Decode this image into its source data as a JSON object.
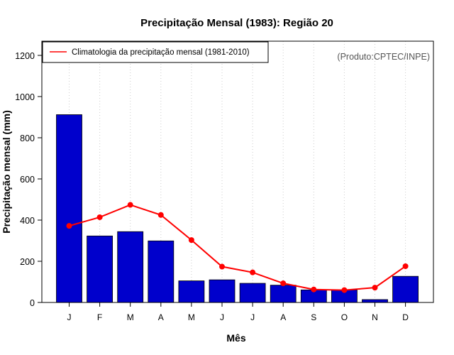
{
  "chart_data": {
    "type": "bar",
    "title": "Precipitação Mensal (1983): Região 20",
    "xlabel": "Mês",
    "ylabel": "Precipitação mensal (mm)",
    "categories": [
      "J",
      "F",
      "M",
      "A",
      "M",
      "J",
      "J",
      "A",
      "S",
      "O",
      "N",
      "D"
    ],
    "ylim": [
      0,
      1270
    ],
    "yticks": [
      0,
      200,
      400,
      600,
      800,
      1000,
      1200
    ],
    "grid": "vertical dotted",
    "series": [
      {
        "name": "Precipitação mensal 1983",
        "type": "bar",
        "color": "#0000cc",
        "values": [
          912,
          323,
          344,
          299,
          105,
          110,
          93,
          84,
          61,
          61,
          14,
          127
        ]
      },
      {
        "name": "Climatologia da precipitação mensal (1981-2010)",
        "type": "line",
        "color": "#ff0000",
        "values": [
          372,
          414,
          474,
          425,
          303,
          174,
          146,
          93,
          63,
          60,
          72,
          176
        ]
      }
    ],
    "legend": {
      "position": "top-left",
      "label": "Climatologia da precipitação mensal (1981-2010)"
    },
    "annotation": "(Produto:CPTEC/INPE)"
  }
}
